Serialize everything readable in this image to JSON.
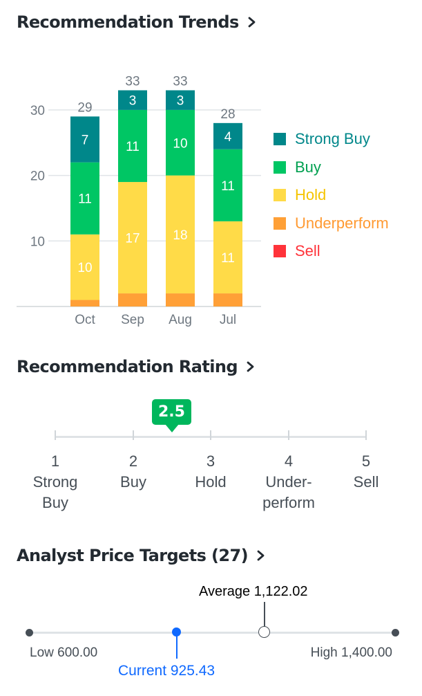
{
  "trends": {
    "title": "Recommendation Trends",
    "legend": [
      {
        "label": "Strong Buy",
        "color": "#00878a",
        "text_color": "#00878a"
      },
      {
        "label": "Buy",
        "color": "#00c664",
        "text_color": "#00a050"
      },
      {
        "label": "Hold",
        "color": "#ffdb48",
        "text_color": "#f5c400"
      },
      {
        "label": "Underperform",
        "color": "#ffa037",
        "text_color": "#ff9a32"
      },
      {
        "label": "Sell",
        "color": "#ff333a",
        "text_color": "#ff333a"
      }
    ]
  },
  "chart_data": {
    "type": "bar",
    "stacked": true,
    "categories": [
      "Oct",
      "Sep",
      "Aug",
      "Jul"
    ],
    "totals": [
      29,
      33,
      33,
      28
    ],
    "ylim": [
      0,
      30
    ],
    "yticks": [
      10,
      20,
      30
    ],
    "grid": true,
    "legend_position": "right",
    "series": [
      {
        "name": "Underperform",
        "color": "#ffa037",
        "values": [
          1,
          2,
          2,
          2
        ],
        "show_labels": false
      },
      {
        "name": "Hold",
        "color": "#ffdb48",
        "values": [
          10,
          17,
          18,
          11
        ],
        "show_labels": true
      },
      {
        "name": "Buy",
        "color": "#00c664",
        "values": [
          11,
          11,
          10,
          11
        ],
        "show_labels": true
      },
      {
        "name": "Strong Buy",
        "color": "#00878a",
        "values": [
          7,
          3,
          3,
          4
        ],
        "show_labels": true
      },
      {
        "name": "Sell",
        "color": "#ff333a",
        "values": [
          0,
          0,
          0,
          0
        ],
        "show_labels": false
      }
    ]
  },
  "rating": {
    "title": "Recommendation Rating",
    "value": 2.5,
    "value_label": "2.5",
    "scale": [
      {
        "num": "1",
        "line1": "Strong",
        "line2": "Buy"
      },
      {
        "num": "2",
        "line1": "Buy",
        "line2": ""
      },
      {
        "num": "3",
        "line1": "Hold",
        "line2": ""
      },
      {
        "num": "4",
        "line1": "Under-",
        "line2": "perform"
      },
      {
        "num": "5",
        "line1": "Sell",
        "line2": ""
      }
    ]
  },
  "price_targets": {
    "title": "Analyst Price Targets (27)",
    "low_label": "Low 600.00",
    "high_label": "High 1,400.00",
    "average_label": "Average 1,122.02",
    "current_label": "Current 925.43",
    "low": 600.0,
    "high": 1400.0,
    "average": 1122.02,
    "current": 925.43,
    "current_color": "#0f69ff"
  }
}
